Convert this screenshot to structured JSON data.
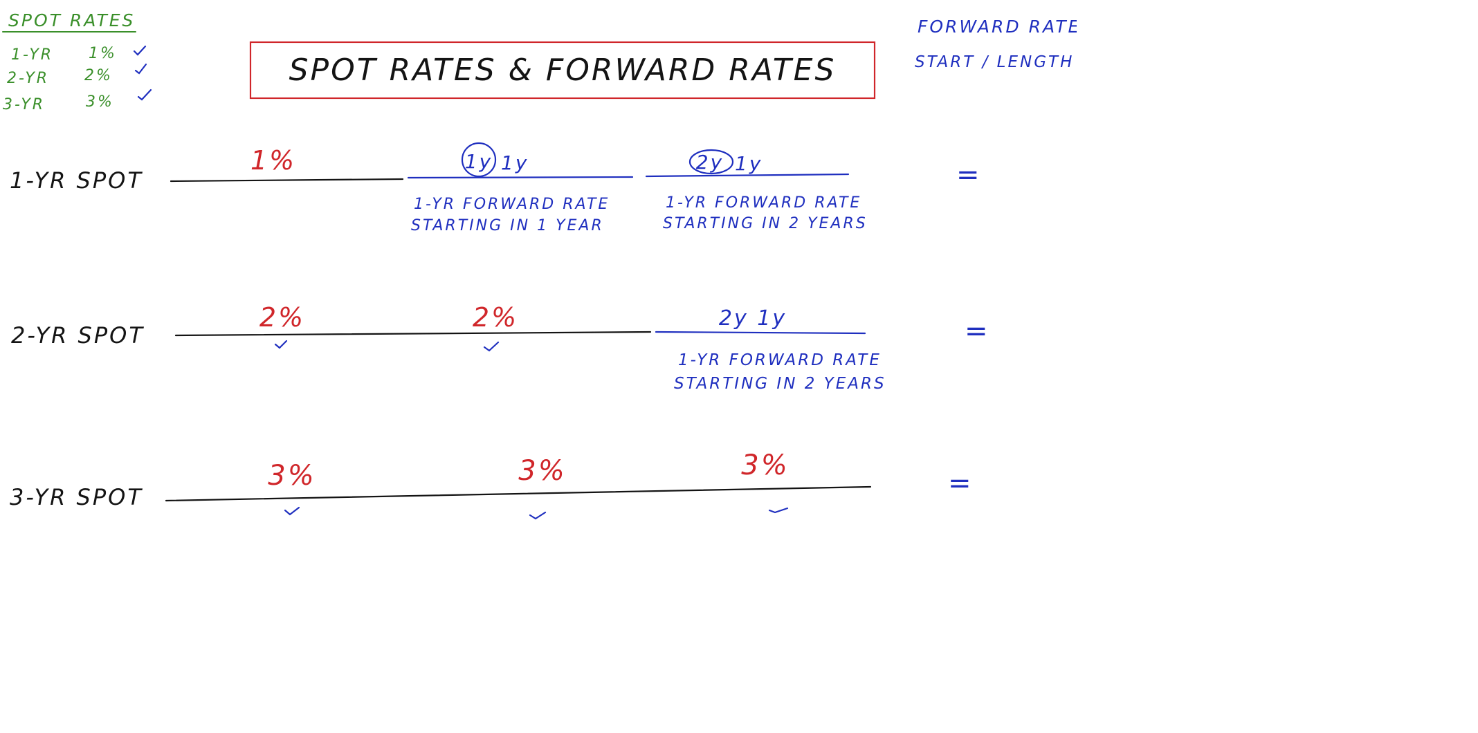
{
  "title": "SPOT RATES & FORWARD RATES",
  "legend": {
    "heading": "SPOT RATES",
    "items": [
      {
        "label": "1-YR",
        "rate": "1%"
      },
      {
        "label": "2-YR",
        "rate": "2%"
      },
      {
        "label": "3-YR",
        "rate": "3%"
      }
    ]
  },
  "note": {
    "line1": "FORWARD RATE",
    "line2": "START / LENGTH"
  },
  "rows": {
    "r1": {
      "label": "1-YR SPOT",
      "seg1_value": "1%",
      "seg2_notation_circled": "1y",
      "seg2_notation_rest": "1y",
      "seg2_desc1": "1-YR FORWARD RATE",
      "seg2_desc2": "STARTING IN 1 YEAR",
      "seg3_notation_circled": "2y",
      "seg3_notation_rest": "1y",
      "seg3_desc1": "1-YR FORWARD RATE",
      "seg3_desc2": "STARTING IN 2 YEARS",
      "equals": "="
    },
    "r2": {
      "label": "2-YR SPOT",
      "seg1_value": "2%",
      "seg2_value": "2%",
      "seg3_notation": "2y 1y",
      "seg3_desc1": "1-YR FORWARD RATE",
      "seg3_desc2": "STARTING IN 2 YEARS",
      "equals": "="
    },
    "r3": {
      "label": "3-YR SPOT",
      "seg1_value": "3%",
      "seg2_value": "3%",
      "seg3_value": "3%",
      "equals": "="
    }
  },
  "colors": {
    "ink_black": "#141414",
    "ink_green": "#3a8f2a",
    "ink_blue": "#1f2fbf",
    "ink_red": "#d0262a",
    "title_box": "#d0262a"
  }
}
